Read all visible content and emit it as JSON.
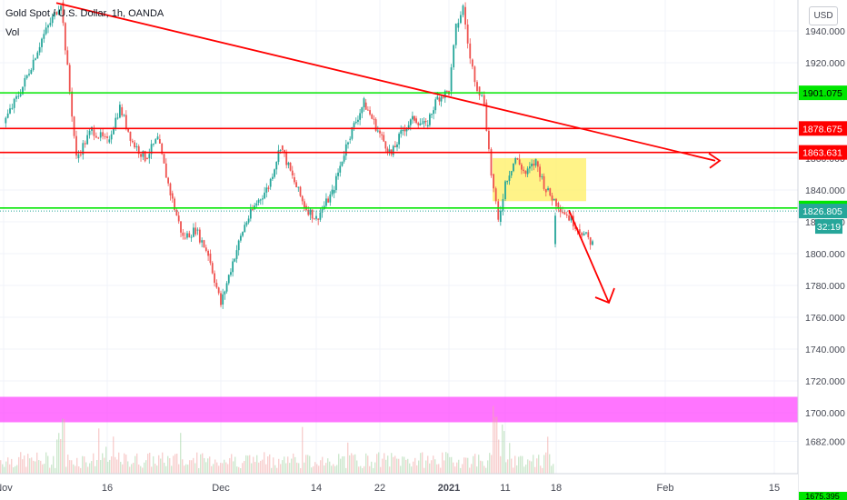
{
  "header": {
    "title": "Gold Spot / U.S. Dollar, 1h, OANDA",
    "volume_label": "Vol",
    "currency_button": "USD"
  },
  "colors": {
    "up_candle": "#26a69a",
    "down_candle": "#ef5350",
    "red_line": "#ff0000",
    "green_line": "#00e600",
    "highlight_zone": "#ffee55",
    "volume_zone": "#ff40ff",
    "last_price_badge": "#26a69a"
  },
  "chart_data": {
    "type": "candlestick",
    "title": "Gold Spot / U.S. Dollar, 1h, OANDA",
    "ylim": [
      1675,
      1957
    ],
    "y_ticks": [
      1682,
      1700,
      1720,
      1740,
      1760,
      1780,
      1800,
      1820,
      1840,
      1860,
      1880,
      1900,
      1920,
      1940
    ],
    "x_ticks": [
      "Nov",
      "16",
      "Dec",
      "14",
      "22",
      "2021",
      "11",
      "18",
      "Feb",
      "15"
    ],
    "grid": true,
    "price_path": [
      {
        "date": "Nov",
        "price": 1882
      },
      {
        "date": "Nov",
        "price": 1905
      },
      {
        "date": "Nov",
        "price": 1935
      },
      {
        "date": "9",
        "price": 1958
      },
      {
        "date": "9",
        "price": 1860
      },
      {
        "date": "9",
        "price": 1878
      },
      {
        "date": "16",
        "price": 1870
      },
      {
        "date": "16",
        "price": 1892
      },
      {
        "date": "16",
        "price": 1870
      },
      {
        "date": "16",
        "price": 1860
      },
      {
        "date": "16",
        "price": 1872
      },
      {
        "date": "16",
        "price": 1838
      },
      {
        "date": "16",
        "price": 1810
      },
      {
        "date": "16",
        "price": 1815
      },
      {
        "date": "16",
        "price": 1800
      },
      {
        "date": "Dec",
        "price": 1768
      },
      {
        "date": "Dec",
        "price": 1795
      },
      {
        "date": "Dec",
        "price": 1818
      },
      {
        "date": "Dec",
        "price": 1832
      },
      {
        "date": "Dec",
        "price": 1842
      },
      {
        "date": "Dec",
        "price": 1868
      },
      {
        "date": "Dec",
        "price": 1848
      },
      {
        "date": "Dec",
        "price": 1830
      },
      {
        "date": "14",
        "price": 1822
      },
      {
        "date": "14",
        "price": 1838
      },
      {
        "date": "14",
        "price": 1872
      },
      {
        "date": "14",
        "price": 1895
      },
      {
        "date": "22",
        "price": 1875
      },
      {
        "date": "22",
        "price": 1862
      },
      {
        "date": "22",
        "price": 1878
      },
      {
        "date": "22",
        "price": 1885
      },
      {
        "date": "22",
        "price": 1880
      },
      {
        "date": "22",
        "price": 1898
      },
      {
        "date": "2021",
        "price": 1902
      },
      {
        "date": "2021",
        "price": 1942
      },
      {
        "date": "2021",
        "price": 1955
      },
      {
        "date": "2021",
        "price": 1922
      },
      {
        "date": "2021",
        "price": 1905
      },
      {
        "date": "2021",
        "price": 1895
      },
      {
        "date": "2021",
        "price": 1850
      },
      {
        "date": "2021",
        "price": 1820
      },
      {
        "date": "11",
        "price": 1845
      },
      {
        "date": "11",
        "price": 1860
      },
      {
        "date": "11",
        "price": 1850
      },
      {
        "date": "11",
        "price": 1858
      },
      {
        "date": "11",
        "price": 1840
      },
      {
        "date": "18",
        "price": 1832
      },
      {
        "date": "18",
        "price": 1806
      },
      {
        "date": "18",
        "price": 1826.805
      }
    ],
    "horizontal_lines": [
      {
        "price": 1901.075,
        "label": "1901.075",
        "color": "#00e600"
      },
      {
        "price": 1878.675,
        "label": "1878.675",
        "color": "#ff0000"
      },
      {
        "price": 1863.631,
        "label": "1863.631",
        "color": "#ff0000"
      },
      {
        "price": 1828.694,
        "label": "1828.694",
        "color": "#00e600"
      }
    ],
    "last_price": {
      "price": 1826.805,
      "label": "1826.805",
      "countdown": "32:19"
    },
    "trendline": {
      "from": {
        "date": "Nov",
        "price": 1957
      },
      "to": {
        "date": "Feb",
        "price": 1863
      }
    },
    "highlight_zone": {
      "from_date": "2021",
      "to_date": "18",
      "top": 1860,
      "bottom": 1833
    },
    "arrow_down": {
      "from": {
        "date": "18",
        "price": 1829
      },
      "to": {
        "date": "Feb",
        "price": 1768
      }
    },
    "volume_band": {
      "top": 1710,
      "bottom": 1694
    },
    "bottom_tick_label": "1675.395"
  }
}
